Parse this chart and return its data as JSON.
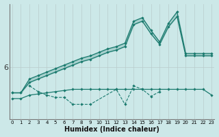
{
  "xlabel": "Humidex (Indice chaleur)",
  "background_color": "#cce8e8",
  "grid_color_v": "#c4d8d8",
  "grid_color_h": "#b0d0d0",
  "line_color": "#1a7a6e",
  "ylim": [
    5.55,
    6.55
  ],
  "xlim": [
    -0.3,
    23.3
  ],
  "ytick_positions": [
    6.0
  ],
  "ytick_labels": [
    "6"
  ],
  "upper_top_x": [
    0,
    1,
    2,
    3,
    4,
    5,
    6,
    7,
    8,
    9,
    10,
    11,
    12,
    13,
    14,
    15,
    16,
    17,
    18,
    19,
    20,
    21,
    22,
    23
  ],
  "upper_top_y": [
    5.78,
    5.78,
    5.9,
    5.93,
    5.96,
    5.99,
    6.02,
    6.05,
    6.08,
    6.1,
    6.13,
    6.16,
    6.18,
    6.21,
    6.4,
    6.43,
    6.32,
    6.22,
    6.38,
    6.48,
    6.12,
    6.12,
    6.12,
    6.12
  ],
  "upper_bot_x": [
    0,
    1,
    2,
    3,
    4,
    5,
    6,
    7,
    8,
    9,
    10,
    11,
    12,
    13,
    14,
    15,
    16,
    17,
    18,
    19,
    20,
    21,
    22,
    23
  ],
  "upper_bot_y": [
    5.78,
    5.78,
    5.87,
    5.9,
    5.93,
    5.96,
    5.99,
    6.02,
    6.05,
    6.07,
    6.1,
    6.13,
    6.15,
    6.18,
    6.37,
    6.4,
    6.29,
    6.2,
    6.35,
    6.44,
    6.1,
    6.1,
    6.1,
    6.1
  ],
  "flat_x": [
    0,
    1,
    2,
    3,
    4,
    5,
    6,
    7,
    8,
    9,
    10,
    11,
    12,
    13,
    14,
    15,
    16,
    17,
    18,
    19,
    20,
    21,
    22,
    23
  ],
  "flat_y": [
    5.73,
    5.73,
    5.76,
    5.77,
    5.78,
    5.79,
    5.8,
    5.81,
    5.81,
    5.81,
    5.81,
    5.81,
    5.81,
    5.81,
    5.81,
    5.81,
    5.81,
    5.81,
    5.81,
    5.81,
    5.81,
    5.81,
    5.81,
    5.76
  ],
  "volatile_x": [
    2,
    3,
    4,
    5,
    6,
    7,
    8,
    9,
    12,
    13,
    14,
    15,
    16,
    17
  ],
  "volatile_y": [
    5.84,
    5.79,
    5.76,
    5.74,
    5.74,
    5.68,
    5.68,
    5.68,
    5.81,
    5.68,
    5.84,
    5.81,
    5.75,
    5.79
  ]
}
